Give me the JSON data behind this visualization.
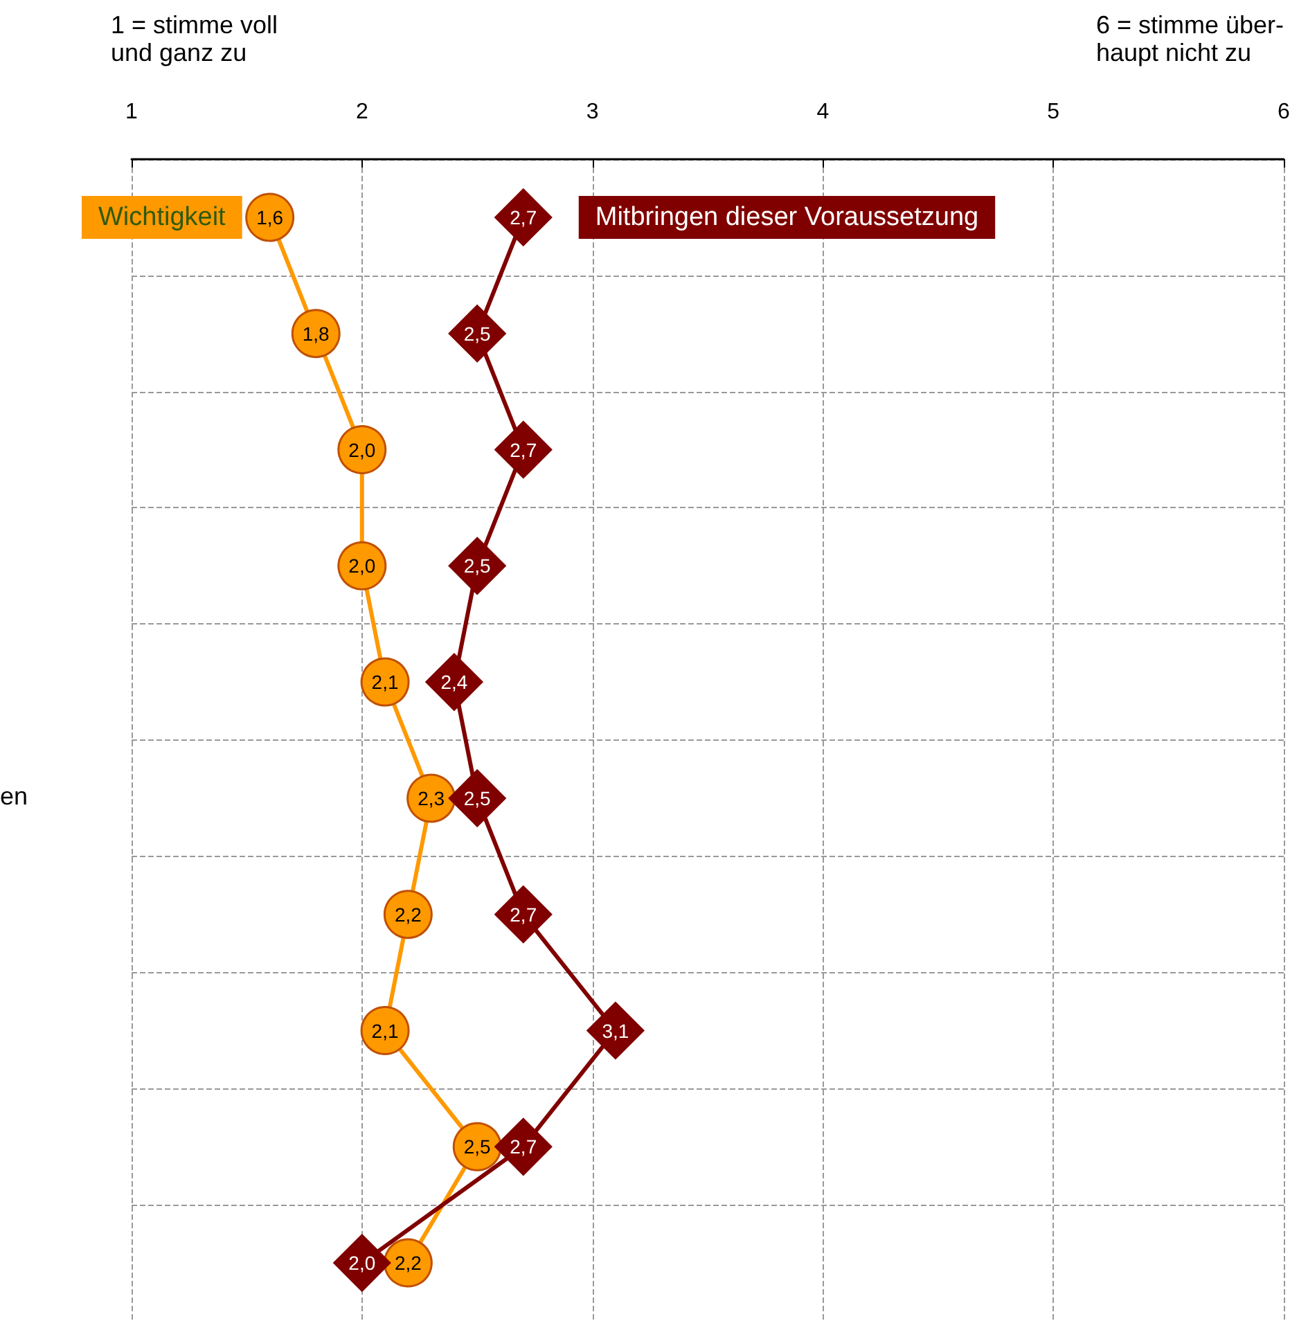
{
  "chart_data": {
    "type": "line",
    "orientation": "horizontal",
    "annotations": [
      "1 = stimme voll\nund ganz zu",
      "6 = stimme über-\nhaupt nicht zu",
      "en"
    ],
    "categories": [
      null,
      null,
      null,
      null,
      null,
      null,
      null,
      null,
      null,
      null
    ],
    "series": [
      {
        "name": "Wichtigkeit",
        "color": "#ff9900",
        "marker": "circle",
        "values": [
          1.6,
          1.8,
          2.0,
          2.0,
          2.1,
          2.3,
          2.2,
          2.1,
          2.5,
          2.2
        ],
        "value_labels": [
          "1,6",
          "1,8",
          "2,0",
          "2,0",
          "2,1",
          "2,3",
          "2,2",
          "2,1",
          "2,5",
          "2,2"
        ]
      },
      {
        "name": "Mitbringen dieser Voraussetzung",
        "color": "#800000",
        "marker": "diamond",
        "values": [
          2.7,
          2.5,
          2.7,
          2.5,
          2.4,
          2.5,
          2.7,
          3.1,
          2.7,
          2.0
        ],
        "value_labels": [
          "2,7",
          "2,5",
          "2,7",
          "2,5",
          "2,4",
          "2,5",
          "2,7",
          "3,1",
          "2,7",
          "2,0"
        ]
      }
    ],
    "xlim": [
      1,
      6
    ],
    "xticks": [
      1,
      2,
      3,
      4,
      5,
      6
    ],
    "grid": true,
    "line_style": "solid"
  }
}
